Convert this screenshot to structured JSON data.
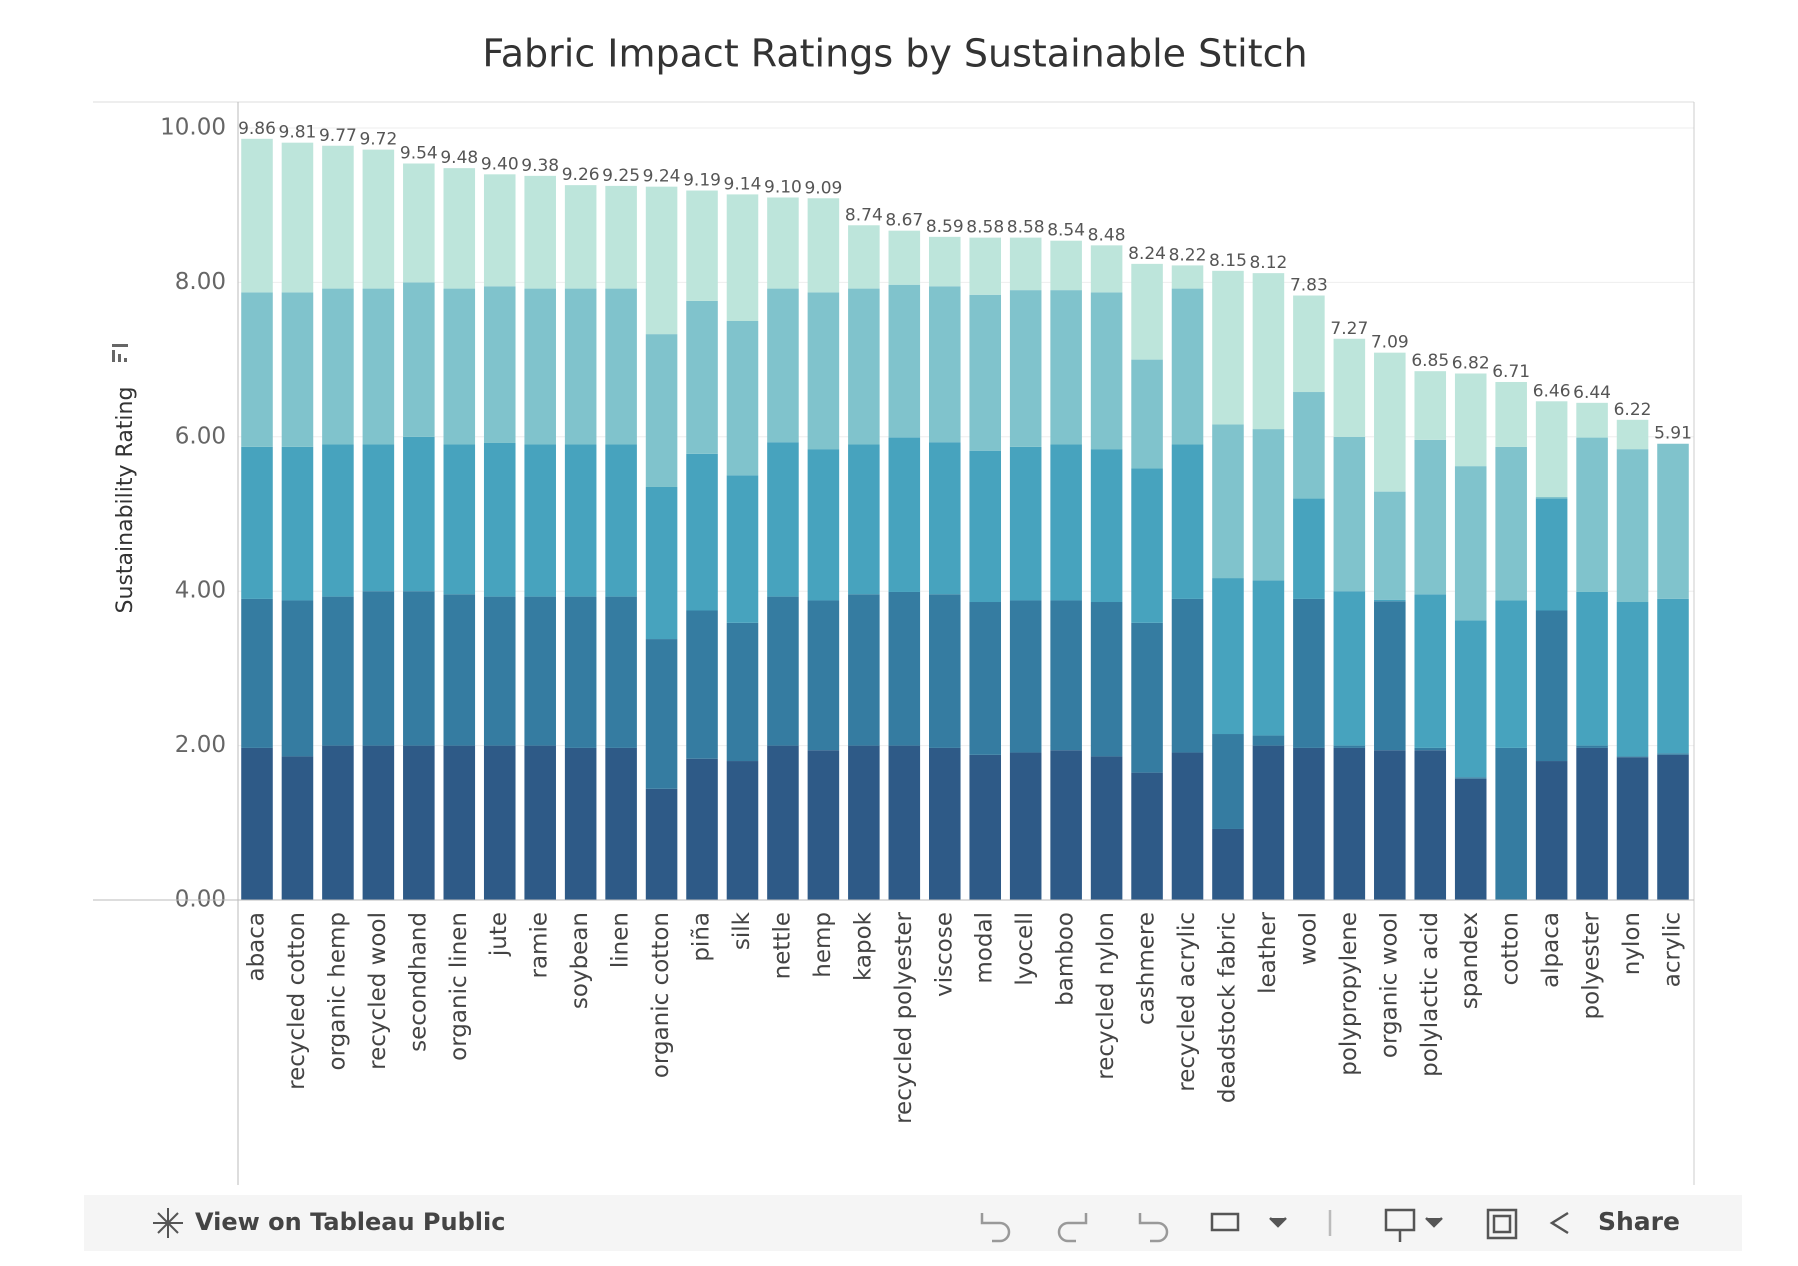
{
  "chart_data": {
    "type": "stacked_bar",
    "title": "Fabric Impact Ratings by Sustainable Stitch",
    "y_label": "Sustainability Rating",
    "categories": [
      "abaca",
      "recycled cotton",
      "organic hemp",
      "recycled wool",
      "secondhand",
      "organic linen",
      "jute",
      "ramie",
      "soybean",
      "linen",
      "organic cotton",
      "piña",
      "silk",
      "nettle",
      "hemp",
      "kapok",
      "recycled polyester",
      "viscose",
      "modal",
      "lyocell",
      "bamboo",
      "recycled nylon",
      "cashmere",
      "recycled acrylic",
      "deadstock fabric",
      "leather",
      "wool",
      "polypropylene",
      "organic wool",
      "polylactic acid",
      "spandex",
      "cotton",
      "alpaca",
      "polyester",
      "nylon",
      "acrylic"
    ],
    "series": [
      {
        "color": "#2e5a87",
        "values": [
          1.97,
          1.86,
          2.0,
          2.0,
          2.0,
          2.0,
          2.0,
          2.0,
          1.97,
          1.97,
          1.44,
          1.83,
          1.8,
          2.0,
          1.94,
          2.0,
          2.0,
          1.97,
          1.88,
          1.91,
          1.94,
          1.86,
          1.65,
          1.91,
          0.92,
          2.0,
          1.97,
          1.97,
          1.94,
          1.94,
          1.57,
          0,
          1.8,
          1.97,
          1.85,
          1.88
        ]
      },
      {
        "color": "#357ca1",
        "values": [
          1.93,
          2.02,
          1.93,
          2.0,
          2.0,
          1.96,
          1.93,
          1.93,
          1.96,
          1.96,
          1.94,
          1.92,
          1.79,
          1.93,
          1.94,
          1.96,
          1.99,
          1.99,
          1.98,
          1.97,
          1.94,
          2.0,
          1.94,
          1.99,
          1.23,
          0.13,
          1.93,
          0.03,
          1.93,
          0.03,
          0.02,
          1.97,
          1.95,
          0.03,
          0.01,
          0.02
        ]
      },
      {
        "color": "#47a3be",
        "values": [
          1.97,
          1.99,
          1.97,
          1.9,
          2.0,
          1.94,
          1.99,
          1.97,
          1.97,
          1.97,
          1.97,
          2.03,
          1.91,
          2.0,
          1.96,
          1.94,
          2.0,
          1.97,
          1.96,
          1.99,
          2.02,
          1.98,
          2.0,
          2.0,
          2.02,
          2.01,
          1.3,
          2.0,
          0.02,
          1.99,
          2.03,
          1.91,
          1.45,
          1.99,
          2.0,
          2.0
        ]
      },
      {
        "color": "#80c3cc",
        "values": [
          2.0,
          2.0,
          2.02,
          2.02,
          2.0,
          2.02,
          2.03,
          2.02,
          2.02,
          2.02,
          1.98,
          1.98,
          2.0,
          1.99,
          2.03,
          2.02,
          1.98,
          2.02,
          2.02,
          2.03,
          2.0,
          2.03,
          1.41,
          2.02,
          1.99,
          1.96,
          1.38,
          2.0,
          1.4,
          2.0,
          2.0,
          1.99,
          0.02,
          2.0,
          1.98,
          2.01
        ]
      },
      {
        "color": "#bde5db",
        "values": [
          1.99,
          1.94,
          1.85,
          1.8,
          1.54,
          1.56,
          1.45,
          1.46,
          1.34,
          1.33,
          1.91,
          1.43,
          1.64,
          1.18,
          1.22,
          0.82,
          0.7,
          0.64,
          0.74,
          0.68,
          0.64,
          0.61,
          1.24,
          0.3,
          1.99,
          2.02,
          1.25,
          1.27,
          1.8,
          0.89,
          1.2,
          0.84,
          1.24,
          0.45,
          0.38,
          0
        ]
      }
    ],
    "totals": {
      "values": [
        9.86,
        9.81,
        9.77,
        9.72,
        9.54,
        9.48,
        9.4,
        9.38,
        9.26,
        9.25,
        9.24,
        9.19,
        9.14,
        9.1,
        9.09,
        8.74,
        8.67,
        8.59,
        8.58,
        8.58,
        8.54,
        8.48,
        8.24,
        8.22,
        8.15,
        8.12,
        7.83,
        7.27,
        7.09,
        6.85,
        6.82,
        6.71,
        6.46,
        6.44,
        6.22,
        5.91
      ],
      "value_labels": [
        "9.86",
        "9.81",
        "9.77",
        "9.72",
        "9.54",
        "9.48",
        "9.40",
        "9.38",
        "9.26",
        "9.25",
        "9.24",
        "9.19",
        "9.14",
        "9.10",
        "9.09",
        "8.74",
        "8.67",
        "8.59",
        "8.58",
        "8.58",
        "8.54",
        "8.48",
        "8.24",
        "8.22",
        "8.15",
        "8.12",
        "7.83",
        "7.27",
        "7.09",
        "6.85",
        "6.82",
        "6.71",
        "6.46",
        "6.44",
        "6.22",
        "5.91"
      ]
    },
    "ylim": [
      0,
      10
    ],
    "yticks": [
      {
        "value": 0,
        "label": "0.00"
      },
      {
        "value": 2,
        "label": "2.00"
      },
      {
        "value": 4,
        "label": "4.00"
      },
      {
        "value": 6,
        "label": "6.00"
      },
      {
        "value": 8,
        "label": "8.00"
      },
      {
        "value": 10,
        "label": "10.00"
      }
    ],
    "grid": true
  },
  "toolbar": {
    "view_link": "View on Tableau Public",
    "share": "Share"
  }
}
